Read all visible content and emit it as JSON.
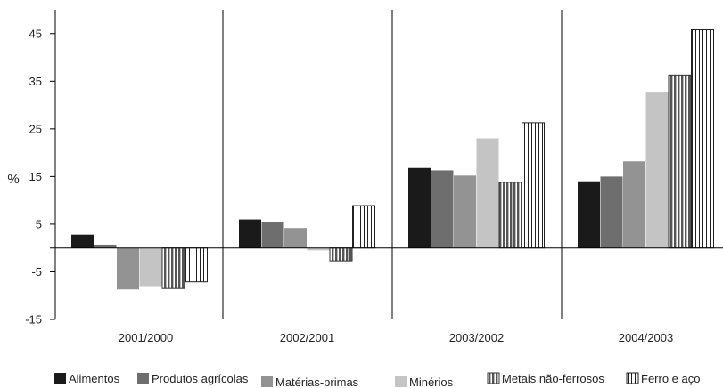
{
  "chart_data": {
    "type": "bar",
    "title": "",
    "xlabel": "",
    "ylabel": "%",
    "ylim": [
      -15,
      50
    ],
    "yticks": [
      45,
      35,
      25,
      15,
      5,
      -5,
      -15
    ],
    "grid": false,
    "legend_position": "bottom",
    "categories": [
      "2001/2000",
      "2002/2001",
      "2003/2002",
      "2004/2003"
    ],
    "series": [
      {
        "name": "Alimentos",
        "values": [
          2.8,
          6.0,
          16.8,
          14.0
        ],
        "color": "#1a1a1a",
        "pattern": "solid"
      },
      {
        "name": "Produtos agrícolas",
        "values": [
          0.7,
          5.5,
          16.3,
          15.0
        ],
        "color": "#6e6e6e",
        "pattern": "solid"
      },
      {
        "name": "Matérias-primas",
        "values": [
          -8.7,
          4.2,
          15.2,
          18.2
        ],
        "color": "#939393",
        "pattern": "solid"
      },
      {
        "name": "Minérios",
        "values": [
          -8.0,
          -0.5,
          23.0,
          32.8
        ],
        "color": "#c4c4c4",
        "pattern": "solid"
      },
      {
        "name": "Metais não-ferrosos",
        "values": [
          -8.5,
          -2.7,
          13.8,
          36.3
        ],
        "color": "#555555",
        "pattern": "vstripe-dense"
      },
      {
        "name": "Ferro e aço",
        "values": [
          -7.1,
          8.9,
          26.3,
          45.8
        ],
        "color": "#ffffff",
        "pattern": "vstripe-open"
      }
    ]
  }
}
